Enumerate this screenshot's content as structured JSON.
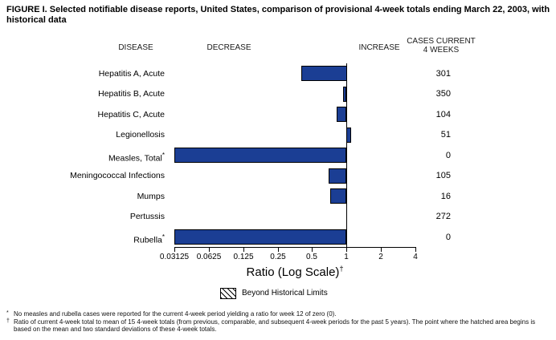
{
  "title": "FIGURE I. Selected notifiable disease reports, United States, comparison of provisional 4-week totals ending March 22, 2003, with historical data",
  "column_headers": {
    "disease": "DISEASE",
    "decrease": "DECREASE",
    "increase": "INCREASE",
    "cases_line1": "CASES CURRENT",
    "cases_line2": "4 WEEKS"
  },
  "chart_data": {
    "type": "bar",
    "orientation": "horizontal",
    "x_scale": "log2",
    "xlim": [
      0.03125,
      4
    ],
    "baseline": 1,
    "x_ticks": [
      0.03125,
      0.0625,
      0.125,
      0.25,
      0.5,
      1,
      2,
      4
    ],
    "x_tick_labels": [
      "0.03125",
      "0.0625",
      "0.125",
      "0.25",
      "0.5",
      "1",
      "2",
      "4"
    ],
    "xlabel": "Ratio (Log Scale)",
    "xlabel_footnote_marker": "†",
    "bar_color": "#1b3e94",
    "rows": [
      {
        "disease": "Hepatitis A, Acute",
        "marker": "",
        "ratio": 0.4,
        "cases": "301"
      },
      {
        "disease": "Hepatitis B, Acute",
        "marker": "",
        "ratio": 0.93,
        "cases": "350"
      },
      {
        "disease": "Hepatitis C, Acute",
        "marker": "",
        "ratio": 0.82,
        "cases": "104"
      },
      {
        "disease": "Legionellosis",
        "marker": "",
        "ratio": 1.1,
        "cases": "51"
      },
      {
        "disease": "Measles, Total",
        "marker": "*",
        "ratio": 0,
        "cases": "0"
      },
      {
        "disease": "Meningococcal Infections",
        "marker": "",
        "ratio": 0.7,
        "cases": "105"
      },
      {
        "disease": "Mumps",
        "marker": "",
        "ratio": 0.72,
        "cases": "16"
      },
      {
        "disease": "Pertussis",
        "marker": "",
        "ratio": 1,
        "cases": "272"
      },
      {
        "disease": "Rubella",
        "marker": "*",
        "ratio": 0,
        "cases": "0"
      }
    ],
    "legend": {
      "swatch": "diagonal-hatch",
      "label": "Beyond Historical Limits"
    }
  },
  "footnotes": [
    {
      "marker": "*",
      "text": "No measles and rubella cases were reported for the current 4-week period yielding a ratio for week 12 of zero (0)."
    },
    {
      "marker": "†",
      "text": "Ratio of current 4-week total to mean of 15 4-week totals (from previous, comparable, and subsequent 4-week periods for the past 5 years). The point where the hatched area begins is based on the mean and two standard deviations of these 4-week totals."
    }
  ]
}
